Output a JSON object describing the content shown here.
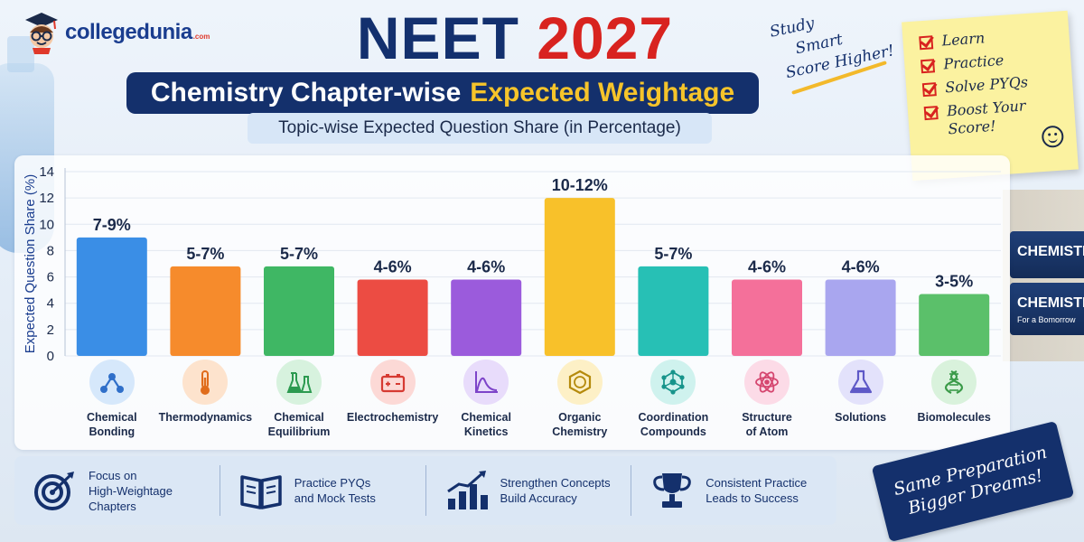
{
  "brand": {
    "name": "collegedunia",
    "suffix": ".com"
  },
  "title": {
    "word1": "NEET",
    "word2": "2027"
  },
  "subtitle": {
    "main": "Chemistry Chapter-wise",
    "highlight": "Expected Weightage"
  },
  "caption": "Topic-wise Expected Question Share (in Percentage)",
  "study_note": [
    "Study",
    "Smart",
    "Score Higher!"
  ],
  "sticky_note": [
    "Learn",
    "Practice",
    "Solve PYQs",
    "Boost Your Score!"
  ],
  "books": {
    "spine1": "CHEMISTRY",
    "spine2": "CHEMISTRY",
    "spine2_sub": "For a Bomorrow"
  },
  "chart_data": {
    "type": "bar",
    "title": "Topic-wise Expected Question Share (in Percentage)",
    "ylabel": "Expected Question Share (%)",
    "ylim": [
      0,
      14
    ],
    "yticks": [
      0,
      2,
      4,
      6,
      8,
      10,
      12,
      14
    ],
    "grid": true,
    "categories": [
      "Chemical Bonding",
      "Thermodynamics",
      "Chemical Equilibrium",
      "Electrochemistry",
      "Chemical Kinetics",
      "Organic Chemistry",
      "Coordination Compounds",
      "Structure of Atom",
      "Solutions",
      "Biomolecules"
    ],
    "values": [
      9,
      6.8,
      6.8,
      5.8,
      5.8,
      12,
      6.8,
      5.8,
      5.8,
      4.7
    ],
    "data_labels": [
      "7-9%",
      "5-7%",
      "5-7%",
      "4-6%",
      "4-6%",
      "10-12%",
      "5-7%",
      "4-6%",
      "4-6%",
      "3-5%"
    ],
    "colors": [
      "#3a8ee6",
      "#f68b2c",
      "#3fb764",
      "#ec4c43",
      "#9b5bdc",
      "#f8c12a",
      "#27c0b5",
      "#f4709a",
      "#a9a6ef",
      "#5bc06a"
    ]
  },
  "category_icons": [
    {
      "icon": "molecule-icon",
      "bg": "#d6e8fb",
      "color": "#2f6fc9"
    },
    {
      "icon": "thermometer-icon",
      "bg": "#fde3cd",
      "color": "#e06c1b"
    },
    {
      "icon": "flasks-icon",
      "bg": "#d7f2de",
      "color": "#2c9a50"
    },
    {
      "icon": "battery-icon",
      "bg": "#fcd9d6",
      "color": "#d63a32"
    },
    {
      "icon": "curve-graph-icon",
      "bg": "#e8dcfb",
      "color": "#7d44c9"
    },
    {
      "icon": "benzene-ring-icon",
      "bg": "#fdf0c6",
      "color": "#b58a0c"
    },
    {
      "icon": "network-icon",
      "bg": "#cff2ee",
      "color": "#17948b"
    },
    {
      "icon": "atom-icon",
      "bg": "#fcdbe7",
      "color": "#d5466f"
    },
    {
      "icon": "conical-flask-icon",
      "bg": "#e3e2fb",
      "color": "#5e59c7"
    },
    {
      "icon": "dna-icon",
      "bg": "#d9f2dc",
      "color": "#3a9a48"
    }
  ],
  "category_labels": [
    "Chemical\nBonding",
    "Thermodynamics",
    "Chemical\nEquilibrium",
    "Electrochemistry",
    "Chemical\nKinetics",
    "Organic\nChemistry",
    "Coordination\nCompounds",
    "Structure\nof Atom",
    "Solutions",
    "Biomolecules"
  ],
  "tips": [
    {
      "icon": "target-icon",
      "line1": "Focus on",
      "line2": "High-Weightage Chapters"
    },
    {
      "icon": "open-book-icon",
      "line1": "Practice PYQs",
      "line2": "and Mock Tests"
    },
    {
      "icon": "growth-chart-icon",
      "line1": "Strengthen Concepts",
      "line2": "Build Accuracy"
    },
    {
      "icon": "trophy-icon",
      "line1": "Consistent Practice",
      "line2": "Leads to Success"
    }
  ],
  "ribbon": [
    "Same Preparation",
    "Bigger Dreams!"
  ]
}
